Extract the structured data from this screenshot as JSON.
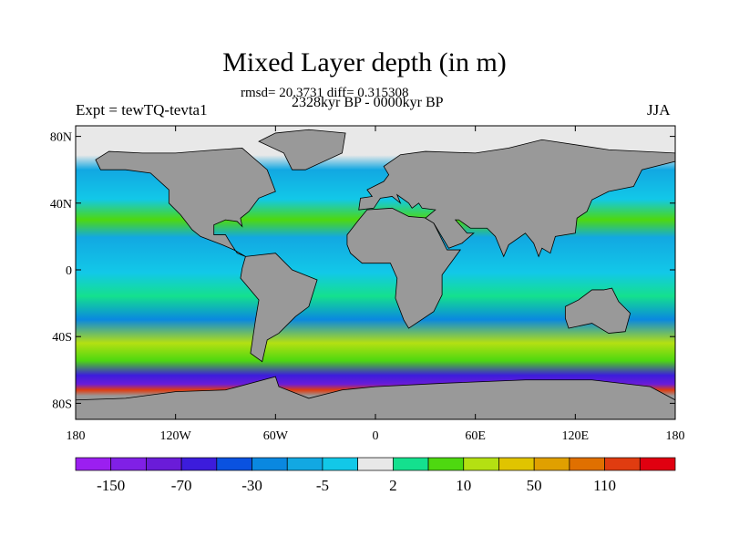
{
  "title": "Mixed Layer depth (in m)",
  "stats": "rmsd= 20.3731 diff= 0.315308",
  "period": "2328kyr BP - 0000kyr BP",
  "experiment": "Expt = tewTQ-tevta1",
  "season": "JJA",
  "map": {
    "projection": "cylindrical equidistant",
    "lat_ticks": [
      {
        "value": 80,
        "label": "80N"
      },
      {
        "value": 40,
        "label": "40N"
      },
      {
        "value": 0,
        "label": "0"
      },
      {
        "value": -40,
        "label": "40S"
      },
      {
        "value": -80,
        "label": "80S"
      }
    ],
    "lon_ticks": [
      {
        "value": -180,
        "label": "180"
      },
      {
        "value": -120,
        "label": "120W"
      },
      {
        "value": -60,
        "label": "60W"
      },
      {
        "value": 0,
        "label": "0"
      },
      {
        "value": 60,
        "label": "60E"
      },
      {
        "value": 120,
        "label": "120E"
      },
      {
        "value": 180,
        "label": "180"
      }
    ],
    "land_color": "#999999",
    "ice_color": "#e8e8e8"
  },
  "colorbar": {
    "colors": [
      "#9b1ff0",
      "#8020e6",
      "#6a1cd8",
      "#3c1cdc",
      "#0a52e0",
      "#0a88e0",
      "#12a8e2",
      "#12c8e8",
      "#e8e8e8",
      "#14e08e",
      "#4ed810",
      "#b4e012",
      "#e0c400",
      "#e0a000",
      "#e07000",
      "#e03c10",
      "#e00010"
    ],
    "labels": [
      {
        "boundary": 1,
        "text": "-150"
      },
      {
        "boundary": 3,
        "text": "-70"
      },
      {
        "boundary": 5,
        "text": "-30"
      },
      {
        "boundary": 7,
        "text": "-5"
      },
      {
        "boundary": 9,
        "text": "2"
      },
      {
        "boundary": 11,
        "text": "10"
      },
      {
        "boundary": 13,
        "text": "50"
      },
      {
        "boundary": 15,
        "text": "110"
      }
    ]
  }
}
